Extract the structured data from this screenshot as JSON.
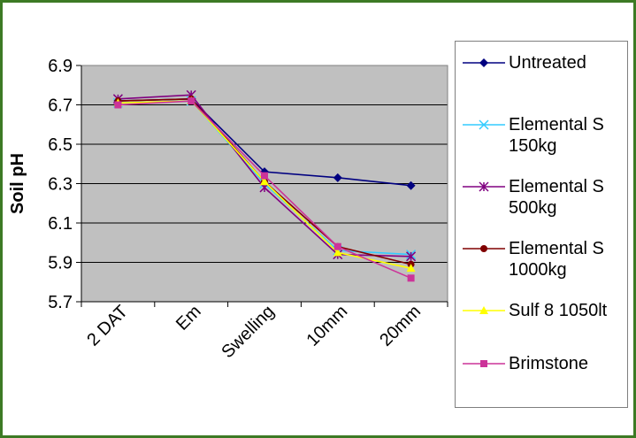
{
  "chart_data": {
    "type": "line",
    "title": "",
    "xlabel": "",
    "ylabel": "Soil pH",
    "categories": [
      "2 DAT",
      "Em",
      "Swelling",
      "10mm",
      "20mm"
    ],
    "ylim": [
      5.7,
      6.9
    ],
    "yticks": [
      "6.9",
      "6.7",
      "6.5",
      "6.3",
      "6.1",
      "5.9",
      "5.7"
    ],
    "grid": true,
    "plot_background": "#c0c0c0",
    "legend_position": "right",
    "series": [
      {
        "name": "Untreated",
        "color": "#000080",
        "marker": "diamond",
        "values": [
          6.72,
          6.73,
          6.36,
          6.33,
          6.29
        ]
      },
      {
        "name": "Elemental S 150kg",
        "color": "#33ccff",
        "marker": "x",
        "values": [
          6.71,
          6.72,
          6.3,
          5.96,
          5.94
        ]
      },
      {
        "name": "Elemental S 500kg",
        "color": "#800080",
        "marker": "star",
        "values": [
          6.73,
          6.75,
          6.28,
          5.94,
          5.93
        ]
      },
      {
        "name": "Elemental S 1000kg",
        "color": "#800000",
        "marker": "circle",
        "values": [
          6.72,
          6.73,
          6.31,
          5.98,
          5.89
        ]
      },
      {
        "name": "Sulf 8 1050lt",
        "color": "#ffff00",
        "marker": "triangle",
        "values": [
          6.71,
          6.72,
          6.31,
          5.95,
          5.87
        ]
      },
      {
        "name": "Brimstone",
        "color": "#cc3399",
        "marker": "square",
        "values": [
          6.7,
          6.72,
          6.34,
          5.98,
          5.82
        ]
      }
    ]
  }
}
